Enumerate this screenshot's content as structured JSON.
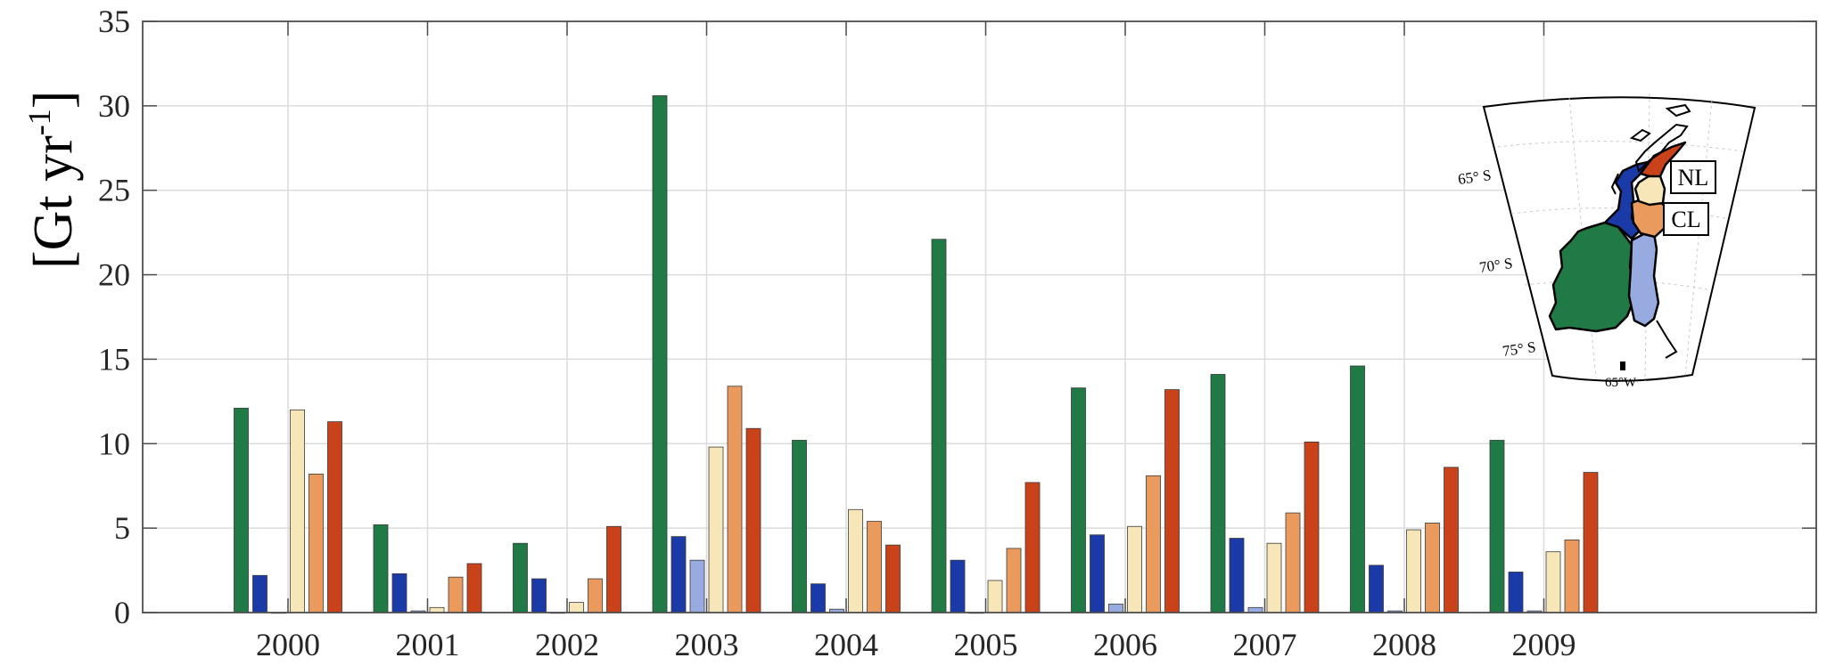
{
  "chart_data": {
    "type": "bar",
    "ylabel": "[Gt yr",
    "ylabel_sup": "-1",
    "ylabel_close": "]",
    "ylim": [
      0,
      35
    ],
    "yticks": [
      0,
      5,
      10,
      15,
      20,
      25,
      30,
      35
    ],
    "categories": [
      "2000",
      "2001",
      "2002",
      "2003",
      "2004",
      "2005",
      "2006",
      "2007",
      "2008",
      "2009"
    ],
    "grid": true,
    "series": [
      {
        "color": "#1f7a45",
        "values": [
          12.1,
          5.2,
          4.1,
          30.6,
          10.2,
          22.1,
          13.3,
          14.1,
          14.6,
          10.2
        ]
      },
      {
        "color": "#1a3aa8",
        "values": [
          2.2,
          2.3,
          2.0,
          4.5,
          1.7,
          3.1,
          4.6,
          4.4,
          2.8,
          2.4
        ]
      },
      {
        "color": "#98abe0",
        "values": [
          0.0,
          0.1,
          0.0,
          3.1,
          0.2,
          0.0,
          0.5,
          0.3,
          0.1,
          0.1
        ]
      },
      {
        "color": "#f7e6b8",
        "values": [
          12.0,
          0.3,
          0.6,
          9.8,
          6.1,
          1.9,
          5.1,
          4.1,
          4.9,
          3.6
        ]
      },
      {
        "color": "#eb9a5e",
        "values": [
          8.2,
          2.1,
          2.0,
          13.4,
          5.4,
          3.8,
          8.1,
          5.9,
          5.3,
          4.3
        ]
      },
      {
        "color": "#c9421a",
        "values": [
          11.3,
          2.9,
          5.1,
          10.9,
          4.0,
          7.7,
          13.2,
          10.1,
          8.6,
          8.3
        ]
      }
    ]
  },
  "inset_map": {
    "lat_labels": [
      "65° S",
      "70° S",
      "75° S"
    ],
    "lon_label": "65°W",
    "region_labels": [
      "NL",
      "CL"
    ],
    "colors": {
      "green": "#1f7a45",
      "blue": "#1a3aa8",
      "lightblue": "#98abe0",
      "cream": "#f7e6b8",
      "orange": "#eb9a5e",
      "red": "#c9421a"
    }
  }
}
